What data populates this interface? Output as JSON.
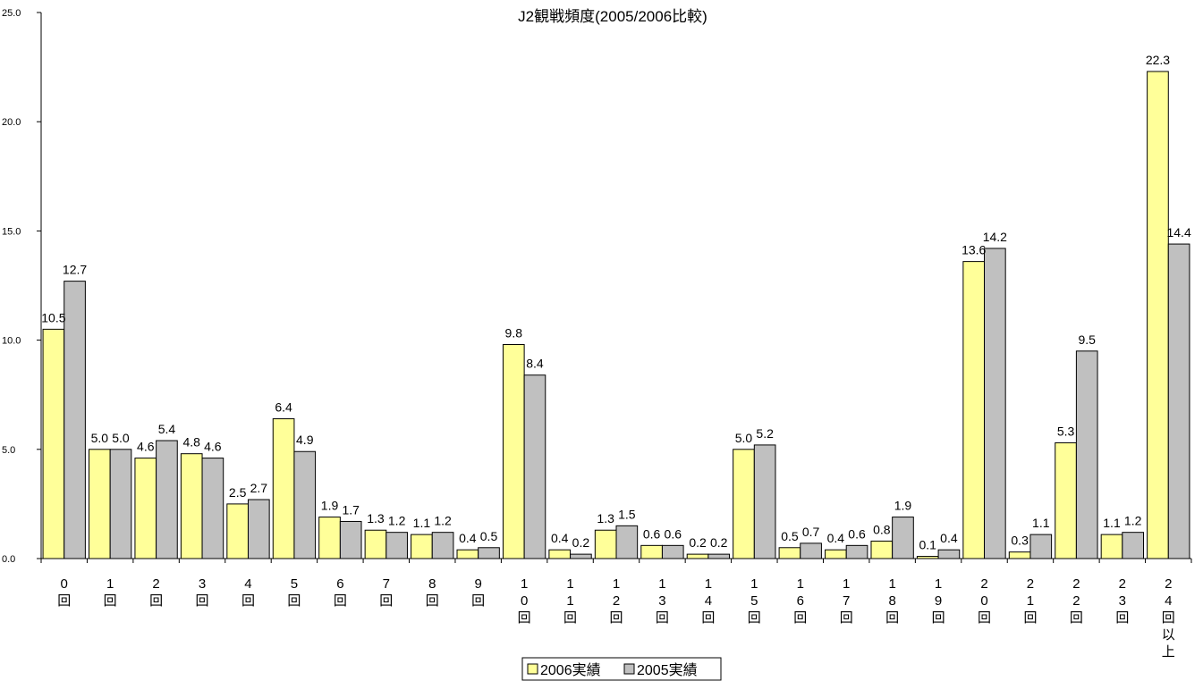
{
  "chart_data": {
    "type": "bar",
    "title": "J2観戦頻度(2005/2006比較)",
    "xlabel": "",
    "ylabel": "",
    "ylim": [
      0,
      25
    ],
    "yticks": [
      "0.0",
      "5.0",
      "10.0",
      "15.0",
      "20.0",
      "25.0"
    ],
    "categories": [
      "0回",
      "1回",
      "2回",
      "3回",
      "4回",
      "5回",
      "6回",
      "7回",
      "8回",
      "9回",
      "10回",
      "11回",
      "12回",
      "13回",
      "14回",
      "15回",
      "16回",
      "17回",
      "18回",
      "19回",
      "20回",
      "21回",
      "22回",
      "23回",
      "24回以上"
    ],
    "series": [
      {
        "name": "2006実績",
        "color": "#ffff99",
        "values": [
          10.5,
          5.0,
          4.6,
          4.8,
          2.5,
          6.4,
          1.9,
          1.3,
          1.1,
          0.4,
          9.8,
          0.4,
          1.3,
          0.6,
          0.2,
          5.0,
          0.5,
          0.4,
          0.8,
          0.1,
          13.6,
          0.3,
          5.3,
          1.1,
          22.3
        ]
      },
      {
        "name": "2005実績",
        "color": "#c0c0c0",
        "values": [
          12.7,
          5.0,
          5.4,
          4.6,
          2.7,
          4.9,
          1.7,
          1.2,
          1.2,
          0.5,
          8.4,
          0.2,
          1.5,
          0.6,
          0.2,
          5.2,
          0.7,
          0.6,
          1.9,
          0.4,
          14.2,
          1.1,
          9.5,
          1.2,
          14.4
        ]
      }
    ],
    "grid": false,
    "legend_position": "bottom"
  }
}
